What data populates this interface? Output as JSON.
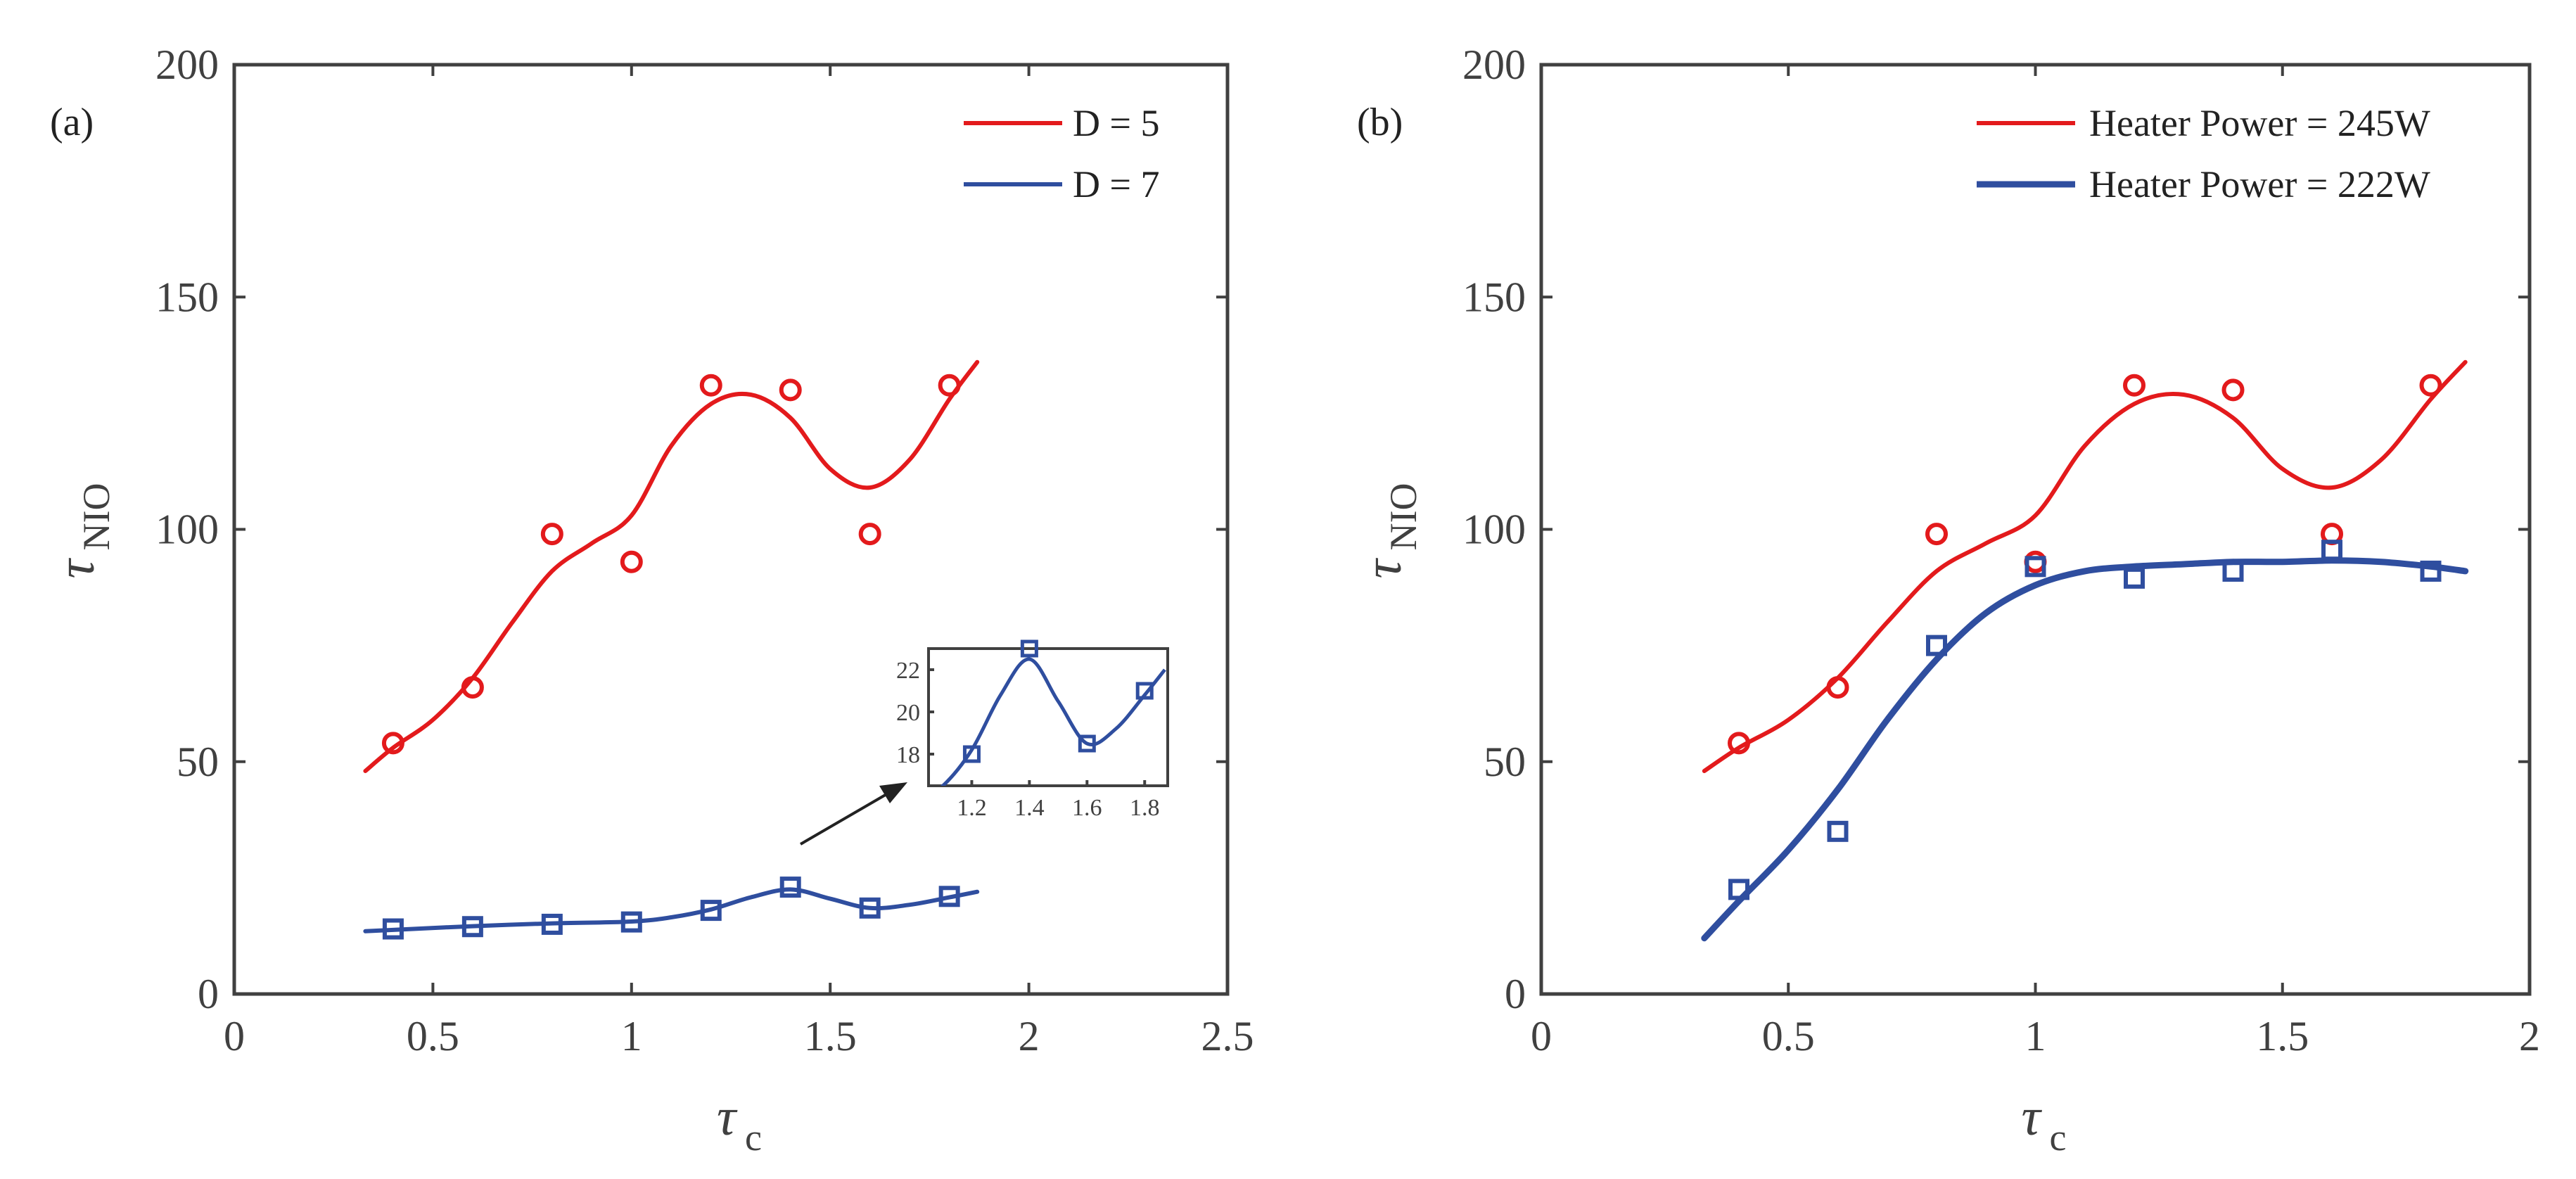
{
  "colors": {
    "red": "#e31a1c",
    "blue": "#2f4e9f",
    "axis": "#404040",
    "arrow": "#222222"
  },
  "chart_data": [
    {
      "type": "line",
      "panel_label": "(a)",
      "xlabel_symbol": "τ",
      "xlabel_sub": "c",
      "ylabel_symbol": "τ",
      "ylabel_sub": "NIO",
      "xlim": [
        0,
        2.5
      ],
      "ylim": [
        0,
        200
      ],
      "xticks": [
        0,
        0.5,
        1,
        1.5,
        2,
        2.5
      ],
      "xtick_labels": [
        "0",
        "0.5",
        "1",
        "1.5",
        "2",
        "2.5"
      ],
      "yticks": [
        0,
        50,
        100,
        150,
        200
      ],
      "ytick_labels": [
        "0",
        "50",
        "100",
        "150",
        "200"
      ],
      "legend_position": "top-right",
      "series": [
        {
          "name": "D = 5",
          "color": "#e31a1c",
          "marker": "circle",
          "points_x": [
            0.4,
            0.6,
            0.8,
            1.0,
            1.2,
            1.4,
            1.6,
            1.8
          ],
          "points_y": [
            54,
            66,
            99,
            93,
            131,
            130,
            99,
            131
          ],
          "fit_x": [
            0.33,
            0.4,
            0.5,
            0.6,
            0.7,
            0.8,
            0.9,
            1.0,
            1.1,
            1.2,
            1.3,
            1.4,
            1.5,
            1.6,
            1.7,
            1.8,
            1.87
          ],
          "fit_y": [
            48,
            53,
            59,
            68,
            80,
            91,
            97,
            103,
            118,
            127,
            129,
            124,
            113,
            109,
            115,
            128,
            136
          ]
        },
        {
          "name": "D = 7",
          "color": "#2f4e9f",
          "marker": "square",
          "points_x": [
            0.4,
            0.6,
            0.8,
            1.0,
            1.2,
            1.4,
            1.6,
            1.8
          ],
          "points_y": [
            14,
            14.5,
            15,
            15.5,
            18,
            23,
            18.5,
            21
          ],
          "fit_x": [
            0.33,
            0.4,
            0.6,
            0.8,
            1.0,
            1.1,
            1.2,
            1.3,
            1.4,
            1.5,
            1.6,
            1.7,
            1.8,
            1.87
          ],
          "fit_y": [
            13.5,
            13.8,
            14.6,
            15.2,
            15.6,
            16.5,
            18.2,
            20.8,
            22.5,
            20.5,
            18.5,
            19.2,
            20.8,
            22
          ]
        }
      ],
      "inset": {
        "xlim": [
          1.05,
          1.88
        ],
        "ylim": [
          16.5,
          23
        ],
        "xticks": [
          1.2,
          1.4,
          1.6,
          1.8
        ],
        "xtick_labels": [
          "1.2",
          "1.4",
          "1.6",
          "1.8"
        ],
        "yticks": [
          18,
          20,
          22
        ],
        "ytick_labels": [
          "18",
          "20",
          "22"
        ],
        "series_index": 1
      }
    },
    {
      "type": "line",
      "panel_label": "(b)",
      "xlabel_symbol": "τ",
      "xlabel_sub": "c",
      "ylabel_symbol": "τ",
      "ylabel_sub": "NIO",
      "xlim": [
        0,
        2
      ],
      "ylim": [
        0,
        200
      ],
      "xticks": [
        0,
        0.5,
        1,
        1.5,
        2
      ],
      "xtick_labels": [
        "0",
        "0.5",
        "1",
        "1.5",
        "2"
      ],
      "yticks": [
        0,
        50,
        100,
        150,
        200
      ],
      "ytick_labels": [
        "0",
        "50",
        "100",
        "150",
        "200"
      ],
      "legend_position": "top-right",
      "series": [
        {
          "name": "Heater Power = 245W",
          "color": "#e31a1c",
          "marker": "circle",
          "points_x": [
            0.4,
            0.6,
            0.8,
            1.0,
            1.2,
            1.4,
            1.6,
            1.8
          ],
          "points_y": [
            54,
            66,
            99,
            93,
            131,
            130,
            99,
            131
          ],
          "fit_x": [
            0.33,
            0.4,
            0.5,
            0.6,
            0.7,
            0.8,
            0.9,
            1.0,
            1.1,
            1.2,
            1.3,
            1.4,
            1.5,
            1.6,
            1.7,
            1.8,
            1.87
          ],
          "fit_y": [
            48,
            53,
            59,
            68,
            80,
            91,
            97,
            103,
            118,
            127,
            129,
            124,
            113,
            109,
            115,
            128,
            136
          ]
        },
        {
          "name": "Heater Power = 222W",
          "color": "#2f4e9f",
          "marker": "square",
          "points_x": [
            0.4,
            0.6,
            0.8,
            1.0,
            1.2,
            1.4,
            1.6,
            1.8
          ],
          "points_y": [
            22.5,
            35,
            75,
            92,
            89.5,
            91,
            95.5,
            91
          ],
          "fit_x": [
            0.33,
            0.4,
            0.5,
            0.6,
            0.7,
            0.8,
            0.9,
            1.0,
            1.1,
            1.2,
            1.3,
            1.4,
            1.5,
            1.6,
            1.7,
            1.8,
            1.87
          ],
          "fit_y": [
            12,
            20,
            31,
            44,
            59,
            72,
            82,
            88,
            91,
            92,
            92.5,
            93,
            93,
            93.3,
            93,
            92,
            91
          ]
        }
      ]
    }
  ]
}
